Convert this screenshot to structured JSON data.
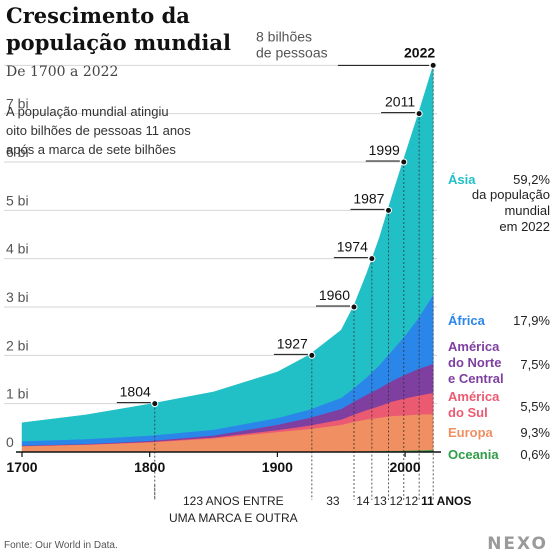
{
  "header": {
    "title_line1": "Crescimento da",
    "title_line2": "população mundial",
    "subtitle": "De 1700 a 2022"
  },
  "annotation": {
    "line1": "A população mundial atingiu",
    "line2": "oito bilhões de pessoas 11 anos",
    "line3": "após a marca de sete bilhões"
  },
  "chart_data": {
    "type": "area",
    "stacked": true,
    "x": [
      1700,
      1750,
      1800,
      1850,
      1900,
      1925,
      1950,
      1960,
      1970,
      1980,
      1990,
      2000,
      2010,
      2022
    ],
    "xlim": [
      1700,
      2025
    ],
    "ylim": [
      0,
      8.4
    ],
    "x_ticks": [
      "1700",
      "1800",
      "1900",
      "2000"
    ],
    "y_ticks": [
      {
        "value": 0,
        "label": "0"
      },
      {
        "value": 1,
        "label": "1 bi"
      },
      {
        "value": 2,
        "label": "2 bi"
      },
      {
        "value": 3,
        "label": "3 bi"
      },
      {
        "value": 4,
        "label": "4 bi"
      },
      {
        "value": 5,
        "label": "5 bi"
      },
      {
        "value": 6,
        "label": "6 bi"
      },
      {
        "value": 7,
        "label": "7 bi"
      },
      {
        "value": 8,
        "label": "8 bilhões de pessoas",
        "label_line1": "8 bilhões",
        "label_line2": "de pessoas"
      }
    ],
    "grid": true,
    "series": [
      {
        "name": "Oceania",
        "share_label": "0,6%",
        "color": "#2e9e48",
        "values": [
          0.002,
          0.002,
          0.002,
          0.003,
          0.006,
          0.009,
          0.013,
          0.016,
          0.019,
          0.023,
          0.027,
          0.031,
          0.037,
          0.045
        ]
      },
      {
        "name": "Europa",
        "share_label": "9,3%",
        "color": "#ef8f62",
        "values": [
          0.12,
          0.15,
          0.2,
          0.28,
          0.41,
          0.47,
          0.55,
          0.61,
          0.66,
          0.69,
          0.72,
          0.73,
          0.74,
          0.74
        ]
      },
      {
        "name": "América do Sul",
        "share_label": "5,5%",
        "color": "#ec5a72",
        "values": [
          0.005,
          0.006,
          0.01,
          0.02,
          0.04,
          0.07,
          0.11,
          0.15,
          0.19,
          0.24,
          0.3,
          0.35,
          0.39,
          0.44
        ]
      },
      {
        "name": "América do Norte e Central",
        "share_label": "7,5%",
        "color": "#7f3fa0",
        "values": [
          0.008,
          0.01,
          0.02,
          0.04,
          0.11,
          0.16,
          0.22,
          0.27,
          0.32,
          0.37,
          0.43,
          0.49,
          0.55,
          0.6
        ]
      },
      {
        "name": "África",
        "share_label": "17,9%",
        "color": "#2b86ea",
        "values": [
          0.09,
          0.1,
          0.11,
          0.12,
          0.14,
          0.17,
          0.23,
          0.28,
          0.36,
          0.48,
          0.63,
          0.81,
          1.04,
          1.43
        ]
      },
      {
        "name": "Ásia",
        "share_label": "59,2%",
        "share_note": "59,2% da população mundial em 2022",
        "color": "#21c0c6",
        "values": [
          0.38,
          0.5,
          0.65,
          0.78,
          0.95,
          1.13,
          1.4,
          1.71,
          2.15,
          2.64,
          3.21,
          3.74,
          4.21,
          4.74
        ]
      }
    ],
    "milestones": [
      {
        "year": 1804,
        "population": 1,
        "label": "1804"
      },
      {
        "year": 1927,
        "population": 2,
        "label": "1927"
      },
      {
        "year": 1960,
        "population": 3,
        "label": "1960"
      },
      {
        "year": 1974,
        "population": 4,
        "label": "1974"
      },
      {
        "year": 1987,
        "population": 5,
        "label": "1987"
      },
      {
        "year": 1999,
        "population": 6,
        "label": "1999"
      },
      {
        "year": 2011,
        "population": 7,
        "label": "2011"
      },
      {
        "year": 2022,
        "population": 8,
        "label": "2022"
      }
    ],
    "interval_labels": [
      {
        "label_line1": "123 ANOS ENTRE",
        "label_line2": "UMA MARCA E OUTRA",
        "from": 1804,
        "to": 1927
      },
      {
        "label": "33",
        "from": 1927,
        "to": 1960
      },
      {
        "label": "14",
        "from": 1960,
        "to": 1974
      },
      {
        "label": "13",
        "from": 1974,
        "to": 1987
      },
      {
        "label": "12",
        "from": 1987,
        "to": 1999
      },
      {
        "label": "12",
        "from": 1999,
        "to": 2011
      },
      {
        "label": "11 ANOS",
        "from": 2011,
        "to": 2022
      }
    ]
  },
  "footer": {
    "source": "Fonte: Our World in Data.",
    "logo": "NEXO"
  }
}
